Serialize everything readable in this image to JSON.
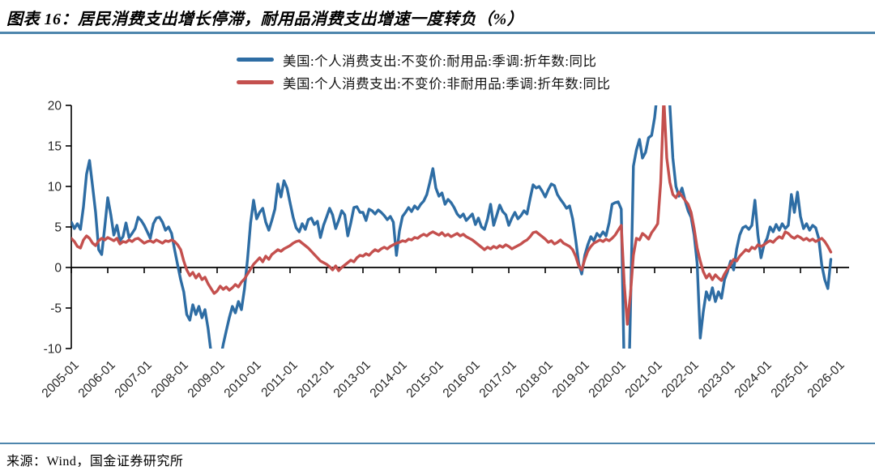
{
  "header": {
    "title": "图表 16：居民消费支出增长停滞，耐用品消费支出增速一度转负（%）"
  },
  "footer": {
    "source": "来源：Wind，国金证券研究所"
  },
  "colors": {
    "durables_line": "#2e6da4",
    "nondurables_line": "#c4504e",
    "rule": "#4e86ad",
    "axis": "#000000",
    "tick_label": "#262626"
  },
  "chart_data": {
    "type": "line",
    "title": "",
    "xlabel": "",
    "ylabel": "",
    "freq": "monthly",
    "start": "2005-01",
    "end": "2025-11",
    "ylim": [
      -10,
      20
    ],
    "y_ticks": [
      20,
      15,
      10,
      5,
      0,
      -5,
      -10
    ],
    "x_tick_labels": [
      "2005-01",
      "2006-01",
      "2007-01",
      "2008-01",
      "2009-01",
      "2010-01",
      "2011-01",
      "2012-01",
      "2013-01",
      "2014-01",
      "2015-01",
      "2016-01",
      "2017-01",
      "2018-01",
      "2019-01",
      "2020-01",
      "2021-01",
      "2022-01",
      "2023-01",
      "2024-01",
      "2025-01",
      "2026-01"
    ],
    "grid": false,
    "legend_position": "top",
    "series": [
      {
        "name": "美国:个人消费支出:不变价:耐用品:季调:折年数:同比",
        "color": "#2e6da4",
        "values": [
          5.6,
          4.8,
          5.4,
          4.7,
          7.5,
          11.5,
          13.2,
          10.0,
          6.8,
          2.2,
          1.6,
          5.0,
          8.6,
          6.5,
          4.0,
          5.2,
          3.3,
          3.8,
          5.5,
          3.7,
          4.2,
          4.8,
          6.2,
          5.8,
          5.2,
          4.4,
          3.6,
          5.4,
          6.1,
          6.2,
          5.6,
          4.6,
          5.0,
          4.2,
          2.2,
          0.3,
          -1.5,
          -3.0,
          -5.8,
          -6.5,
          -4.6,
          -5.8,
          -4.8,
          -6.2,
          -5.2,
          -7.5,
          -10.5,
          -12.5,
          -13.0,
          -11.5,
          -9.5,
          -7.8,
          -6.2,
          -4.8,
          -5.6,
          -4.2,
          -5.2,
          -2.6,
          1.0,
          5.5,
          8.3,
          6.0,
          6.8,
          7.3,
          5.6,
          4.6,
          5.8,
          7.2,
          10.3,
          8.7,
          10.7,
          9.8,
          8.0,
          6.2,
          4.9,
          4.4,
          5.4,
          4.7,
          5.9,
          6.1,
          5.3,
          5.7,
          3.7,
          5.2,
          6.2,
          7.3,
          6.5,
          4.8,
          5.8,
          7.0,
          6.5,
          3.9,
          5.5,
          7.4,
          7.5,
          6.8,
          6.8,
          5.8,
          7.2,
          7.0,
          6.6,
          7.1,
          6.8,
          6.4,
          5.9,
          6.3,
          5.6,
          1.5,
          4.5,
          6.3,
          6.8,
          7.4,
          6.9,
          7.6,
          7.2,
          7.8,
          8.2,
          9.0,
          10.5,
          12.2,
          9.8,
          8.8,
          9.2,
          7.8,
          8.4,
          8.0,
          7.4,
          6.6,
          6.2,
          6.6,
          5.8,
          6.2,
          6.6,
          5.3,
          6.1,
          5.0,
          4.7,
          6.0,
          7.8,
          5.2,
          6.4,
          7.7,
          6.9,
          6.5,
          5.2,
          6.1,
          6.8,
          6.0,
          6.4,
          7.0,
          6.6,
          8.5,
          10.2,
          9.8,
          10.0,
          9.4,
          8.7,
          9.6,
          10.3,
          10.1,
          9.0,
          8.4,
          7.9,
          7.3,
          7.6,
          6.0,
          3.5,
          0.5,
          -0.8,
          1.5,
          2.8,
          3.8,
          3.3,
          4.2,
          3.8,
          4.4,
          3.9,
          5.5,
          7.8,
          8.0,
          8.1,
          7.2,
          -13.0,
          -22.0,
          -6.0,
          12.5,
          14.5,
          15.8,
          13.5,
          14.2,
          16.0,
          16.3,
          18.5,
          22.0,
          32.0,
          46.0,
          30.0,
          20.0,
          13.5,
          10.0,
          8.8,
          9.8,
          8.3,
          7.0,
          6.2,
          4.0,
          0.5,
          -8.7,
          -5.5,
          -3.0,
          -4.0,
          -2.5,
          -4.2,
          -3.0,
          -3.8,
          -1.5,
          -0.5,
          0.8,
          -0.3,
          2.3,
          4.0,
          4.9,
          5.1,
          4.7,
          5.2,
          8.3,
          4.0,
          1.2,
          2.8,
          3.6,
          5.0,
          4.4,
          5.3,
          4.6,
          5.4,
          4.8,
          5.2,
          9.0,
          6.8,
          9.3,
          6.3,
          4.8,
          5.4,
          4.6,
          5.2,
          4.9,
          3.6,
          0.3,
          -1.5,
          -2.6,
          1.0
        ]
      },
      {
        "name": "美国:个人消费支出:不变价:非耐用品:季调:折年数:同比",
        "color": "#c4504e",
        "values": [
          3.6,
          3.2,
          2.6,
          2.4,
          3.4,
          3.9,
          3.6,
          3.0,
          2.7,
          3.3,
          3.6,
          3.4,
          3.7,
          3.5,
          3.3,
          3.6,
          2.9,
          3.2,
          3.1,
          3.4,
          3.2,
          3.5,
          3.6,
          3.3,
          3.0,
          3.2,
          3.3,
          3.1,
          3.4,
          3.2,
          3.0,
          3.3,
          3.2,
          3.4,
          3.2,
          2.8,
          2.2,
          0.8,
          -0.3,
          -1.0,
          -0.6,
          -1.3,
          -0.8,
          -1.5,
          -1.2,
          -2.0,
          -2.6,
          -3.2,
          -2.9,
          -2.3,
          -2.7,
          -2.4,
          -2.8,
          -2.5,
          -2.1,
          -2.4,
          -1.8,
          -1.4,
          -0.8,
          -0.2,
          0.4,
          0.8,
          1.2,
          0.7,
          1.4,
          1.0,
          1.6,
          1.9,
          2.2,
          2.0,
          2.3,
          2.5,
          2.7,
          3.0,
          3.2,
          3.3,
          3.0,
          2.7,
          2.4,
          2.0,
          1.6,
          1.2,
          0.8,
          0.6,
          0.4,
          0.1,
          -0.3,
          0.2,
          -0.4,
          0.0,
          0.3,
          0.6,
          0.9,
          0.7,
          1.2,
          1.5,
          1.4,
          1.7,
          1.5,
          1.9,
          2.2,
          2.0,
          2.3,
          2.5,
          2.3,
          2.6,
          2.8,
          3.0,
          3.1,
          3.3,
          3.2,
          3.5,
          3.4,
          3.7,
          3.6,
          3.9,
          4.1,
          3.9,
          4.2,
          4.4,
          4.2,
          4.0,
          4.3,
          3.9,
          4.1,
          3.8,
          4.0,
          4.2,
          3.9,
          4.1,
          3.8,
          3.6,
          3.4,
          3.1,
          2.8,
          2.5,
          2.2,
          2.5,
          2.3,
          2.6,
          2.4,
          2.7,
          2.5,
          2.8,
          2.6,
          2.3,
          2.5,
          2.7,
          2.9,
          3.2,
          3.4,
          3.8,
          4.3,
          4.4,
          4.1,
          3.8,
          3.5,
          3.1,
          3.3,
          2.9,
          3.1,
          3.4,
          3.0,
          2.8,
          2.6,
          2.2,
          1.4,
          0.2,
          -0.3,
          1.0,
          2.0,
          2.6,
          3.0,
          3.2,
          3.4,
          3.2,
          3.5,
          3.3,
          3.6,
          4.0,
          4.6,
          5.2,
          -2.0,
          -7.0,
          -3.5,
          1.5,
          3.6,
          3.4,
          4.2,
          3.9,
          3.5,
          4.3,
          4.8,
          5.4,
          10.5,
          21.0,
          13.5,
          10.5,
          9.0,
          8.6,
          9.3,
          8.8,
          8.3,
          7.8,
          6.8,
          4.8,
          2.4,
          0.8,
          -0.5,
          -1.3,
          -0.8,
          -1.5,
          -0.9,
          -1.3,
          -1.6,
          -0.8,
          -0.2,
          0.4,
          1.0,
          0.8,
          1.4,
          1.8,
          2.2,
          2.0,
          2.5,
          2.3,
          2.8,
          2.6,
          2.8,
          3.1,
          3.3,
          3.1,
          3.5,
          3.8,
          3.6,
          4.4,
          4.2,
          3.8,
          3.6,
          3.9,
          3.7,
          3.4,
          3.6,
          3.3,
          3.5,
          3.2,
          3.4,
          3.6,
          3.2,
          2.6,
          1.9
        ]
      }
    ]
  }
}
